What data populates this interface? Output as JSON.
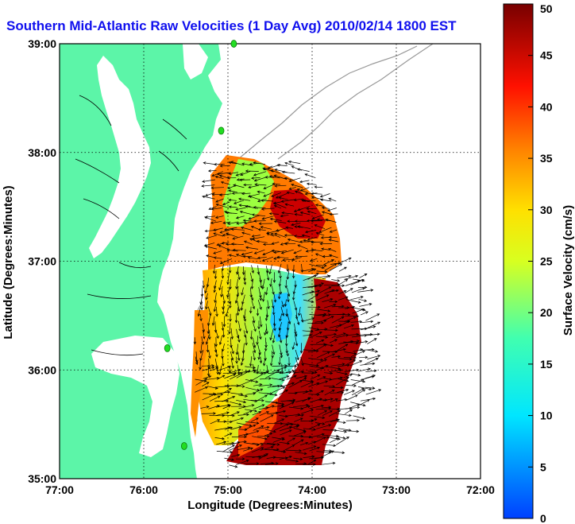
{
  "title": "Southern Mid-Atlantic Raw Velocities (1 Day Avg) 2010/02/14 1800 EST",
  "map": {
    "xlabel": "Longitude (Degrees:Minutes)",
    "ylabel": "Latitude (Degrees:Minutes)",
    "lon_range": [
      -77,
      -72
    ],
    "lat_range": [
      35,
      39
    ],
    "lon_ticks": [
      "77:00",
      "76:00",
      "75:00",
      "74:00",
      "73:00",
      "72:00"
    ],
    "lat_ticks": [
      "35:00",
      "36:00",
      "37:00",
      "38:00",
      "39:00"
    ],
    "grid": "dotted",
    "land_color": "#5cf5a8",
    "water_color": "#ffffff",
    "arrow_color": "#000000",
    "station_color": "#22dd22"
  },
  "colorbar": {
    "label": "Surface Velocity (cm/s)",
    "min": 0,
    "max": 50,
    "ticks": [
      "0",
      "5",
      "10",
      "15",
      "20",
      "25",
      "30",
      "35",
      "40",
      "45",
      "50"
    ],
    "placement": "right"
  },
  "stations": [
    {
      "lon": -74.93,
      "lat": 39.0
    },
    {
      "lon": -75.08,
      "lat": 38.2
    },
    {
      "lon": -75.72,
      "lat": 36.2
    },
    {
      "lon": -75.52,
      "lat": 35.3
    }
  ]
}
